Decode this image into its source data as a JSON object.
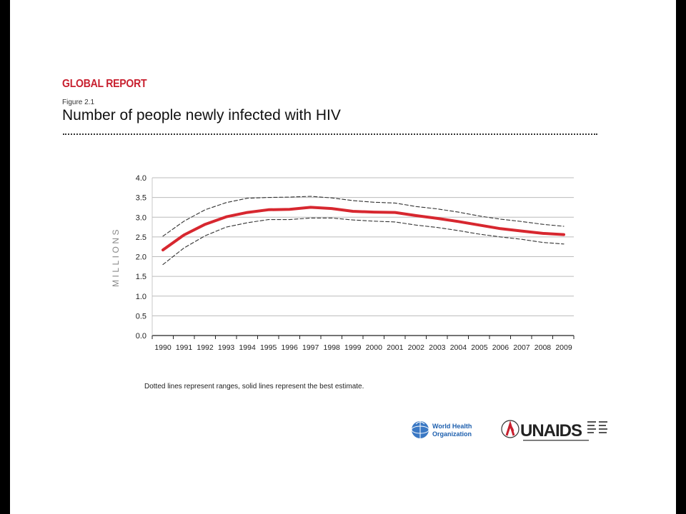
{
  "header": {
    "report_title": "GLOBAL REPORT",
    "figure_label": "Figure 2.1",
    "figure_title": "Number of people newly infected with HIV"
  },
  "note": "Dotted lines represent ranges, solid lines represent the best estimate.",
  "logos": {
    "who": {
      "line1": "World Health",
      "line2": "Organization"
    },
    "unaids": {
      "name": "UNAIDS"
    }
  },
  "chart_data": {
    "type": "line",
    "title": "Number of people newly infected with HIV",
    "ylabel": "MILLIONS",
    "xlabel": "",
    "ylim": [
      0,
      4.0
    ],
    "yticks": [
      "0.0",
      "0.5",
      "1.0",
      "1.5",
      "2.0",
      "2.5",
      "3.0",
      "3.5",
      "4.0"
    ],
    "categories": [
      "1990",
      "1991",
      "1992",
      "1993",
      "1994",
      "1995",
      "1996",
      "1997",
      "1998",
      "1999",
      "2000",
      "2001",
      "2002",
      "2003",
      "2004",
      "2005",
      "2006",
      "2007",
      "2008",
      "2009"
    ],
    "grid": true,
    "series": [
      {
        "role": "estimate",
        "style": "solid",
        "color": "#d7272f",
        "values": [
          2.17,
          2.55,
          2.82,
          3.01,
          3.12,
          3.19,
          3.2,
          3.25,
          3.22,
          3.15,
          3.13,
          3.12,
          3.04,
          2.97,
          2.89,
          2.8,
          2.71,
          2.65,
          2.59,
          2.56
        ]
      },
      {
        "role": "upper",
        "style": "dashed",
        "color": "#333333",
        "values": [
          2.52,
          2.9,
          3.19,
          3.37,
          3.48,
          3.5,
          3.51,
          3.53,
          3.49,
          3.42,
          3.38,
          3.36,
          3.27,
          3.21,
          3.13,
          3.03,
          2.95,
          2.89,
          2.82,
          2.77
        ]
      },
      {
        "role": "lower",
        "style": "dashed",
        "color": "#333333",
        "values": [
          1.8,
          2.22,
          2.53,
          2.75,
          2.86,
          2.94,
          2.94,
          2.98,
          2.98,
          2.93,
          2.9,
          2.88,
          2.8,
          2.74,
          2.66,
          2.57,
          2.5,
          2.44,
          2.36,
          2.32
        ]
      }
    ]
  }
}
